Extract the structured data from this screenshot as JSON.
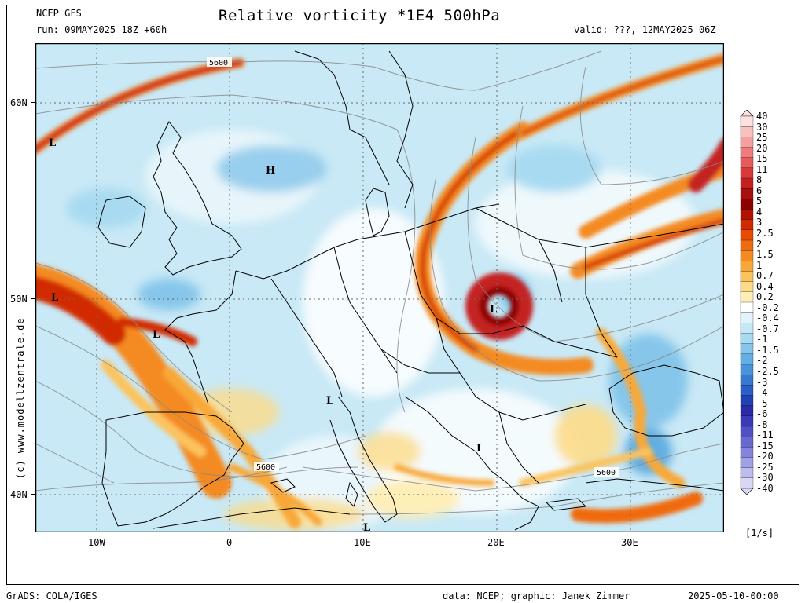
{
  "header": {
    "model": "NCEP GFS",
    "run": "run: 09MAY2025 18Z +60h",
    "title": "Relative vorticity *1E4 500hPa",
    "valid": "valid: ???, 12MAY2025 06Z"
  },
  "map": {
    "lat_labels": [
      "60N",
      "50N",
      "40N"
    ],
    "lon_labels": [
      "10W",
      "0",
      "10E",
      "20E",
      "30E"
    ],
    "contour_labels": [
      "5600",
      "5600",
      "5600"
    ],
    "pressure_centers": [
      "L",
      "H",
      "L",
      "L",
      "L",
      "L",
      "L",
      "L"
    ]
  },
  "colorbar": {
    "unit": "[1/s]",
    "labels": [
      "40",
      "30",
      "25",
      "20",
      "15",
      "11",
      "8",
      "6",
      "5",
      "4",
      "3",
      "2.5",
      "2",
      "1.5",
      "1",
      "0.7",
      "0.4",
      "0.2",
      "-0.2",
      "-0.4",
      "-0.7",
      "-1",
      "-1.5",
      "-2",
      "-2.5",
      "-3",
      "-4",
      "-5",
      "-6",
      "-8",
      "-11",
      "-15",
      "-20",
      "-25",
      "-30",
      "-40"
    ],
    "colors": [
      "#fde0e0",
      "#f9c0c0",
      "#f4a0a0",
      "#ee7c7c",
      "#e65a5a",
      "#d83a3a",
      "#c52020",
      "#a80f0f",
      "#8c0000",
      "#b31200",
      "#d22a00",
      "#e64b00",
      "#f06a10",
      "#f48a20",
      "#f8a838",
      "#fbc35e",
      "#fddb88",
      "#feeeb8",
      "#ffffff",
      "#e3f3fb",
      "#c6e8f6",
      "#a8daf1",
      "#86c6ea",
      "#63aee2",
      "#4893da",
      "#3878cf",
      "#2b5ec6",
      "#2040b4",
      "#2a2aa8",
      "#3a3ab6",
      "#5050c4",
      "#6868d0",
      "#8484dc",
      "#a0a0e6",
      "#bcbcee",
      "#d8d8f6"
    ]
  },
  "watermark": "(c)  www.modellzentrale.de",
  "footer": {
    "left": "GrADS: COLA/IGES",
    "center": "data: NCEP; graphic: Janek Zimmer",
    "right": "2025-05-10-00:00"
  }
}
